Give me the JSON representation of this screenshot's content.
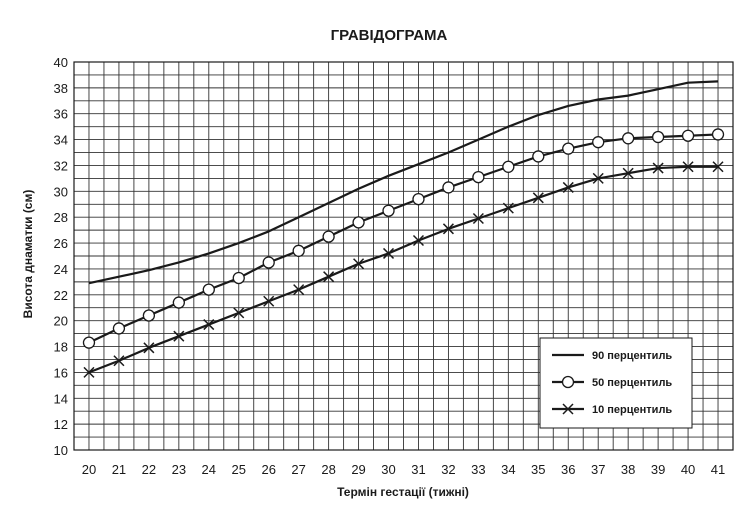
{
  "chart_data": {
    "type": "line",
    "title": "ГРАВІДОГРАМА",
    "xlabel": "Термін гестації (тижні)",
    "ylabel": "Висота днаматки (см)",
    "x": [
      20,
      21,
      22,
      23,
      24,
      25,
      26,
      27,
      28,
      29,
      30,
      31,
      32,
      33,
      34,
      35,
      36,
      37,
      38,
      39,
      40,
      41
    ],
    "xlim": [
      19.5,
      41.5
    ],
    "ylim": [
      10,
      40
    ],
    "yticks": [
      10,
      12,
      14,
      16,
      18,
      20,
      22,
      24,
      26,
      28,
      30,
      32,
      34,
      36,
      38,
      40
    ],
    "grid": true,
    "legend_position": "lower-right",
    "series": [
      {
        "name": "90 перцентиль",
        "marker": "none",
        "values": [
          22.9,
          23.4,
          23.9,
          24.5,
          25.2,
          26.0,
          26.9,
          28.0,
          29.1,
          30.2,
          31.2,
          32.1,
          33.0,
          34.0,
          35.0,
          35.9,
          36.6,
          37.1,
          37.4,
          37.9,
          38.4,
          38.5
        ]
      },
      {
        "name": "50 перцентиль",
        "marker": "circle",
        "values": [
          18.3,
          19.4,
          20.4,
          21.4,
          22.4,
          23.3,
          24.5,
          25.4,
          26.5,
          27.6,
          28.5,
          29.4,
          30.3,
          31.1,
          31.9,
          32.7,
          33.3,
          33.8,
          34.1,
          34.2,
          34.3,
          34.4
        ]
      },
      {
        "name": "10 перцентиль",
        "marker": "x",
        "values": [
          16.0,
          16.9,
          17.9,
          18.8,
          19.7,
          20.6,
          21.5,
          22.4,
          23.4,
          24.4,
          25.2,
          26.2,
          27.1,
          27.9,
          28.7,
          29.5,
          30.3,
          31.0,
          31.4,
          31.8,
          31.9,
          31.9
        ]
      }
    ]
  }
}
